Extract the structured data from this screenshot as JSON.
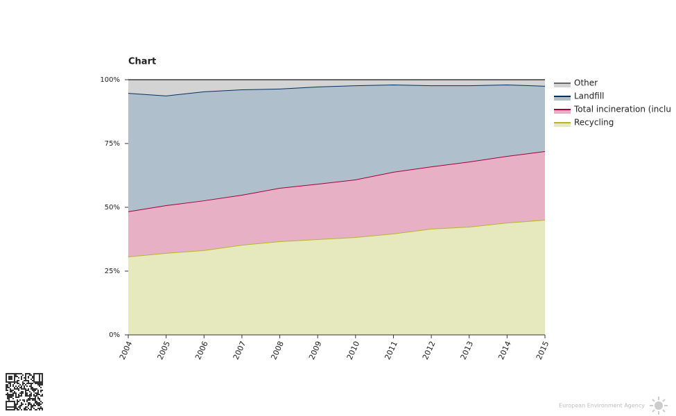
{
  "chart_data": {
    "type": "stacked_area",
    "title": "Chart",
    "categories": [
      "2004",
      "2005",
      "2006",
      "2007",
      "2008",
      "2009",
      "2010",
      "2011",
      "2012",
      "2013",
      "2014",
      "2015"
    ],
    "series": [
      {
        "name": "Recycling",
        "color": "#b5b52a",
        "fill_color": "#e6e9bd",
        "values": [
          30.7,
          32.1,
          33.2,
          35.3,
          36.7,
          37.5,
          38.3,
          39.7,
          41.6,
          42.4,
          44.0,
          45.1
        ]
      },
      {
        "name": "Total incineration (inclu",
        "color": "#a0003c",
        "fill_color": "#e8b0c4",
        "values": [
          17.7,
          18.7,
          19.5,
          19.6,
          20.9,
          21.7,
          22.6,
          24.2,
          24.4,
          25.5,
          26.1,
          26.9
        ]
      },
      {
        "name": "Landfill",
        "color": "#00305c",
        "fill_color": "#b0bfcc",
        "values": [
          46.4,
          43.0,
          42.7,
          41.3,
          38.9,
          38.1,
          36.9,
          34.2,
          31.8,
          29.9,
          28.0,
          25.6
        ]
      },
      {
        "name": "Other",
        "color": "#666666",
        "fill_color": "#d3d3d3",
        "values": [
          5.2,
          6.2,
          4.6,
          3.8,
          3.5,
          2.7,
          2.2,
          1.9,
          2.2,
          2.2,
          1.9,
          2.4
        ]
      }
    ],
    "ylim": [
      0,
      100
    ],
    "yticks": [
      {
        "value": 0,
        "label": "0%"
      },
      {
        "value": 25,
        "label": "25%"
      },
      {
        "value": 50,
        "label": "50%"
      },
      {
        "value": 75,
        "label": "75%"
      },
      {
        "value": 100,
        "label": "100%"
      }
    ],
    "legend": "right"
  },
  "footer": "European Environment Agency"
}
